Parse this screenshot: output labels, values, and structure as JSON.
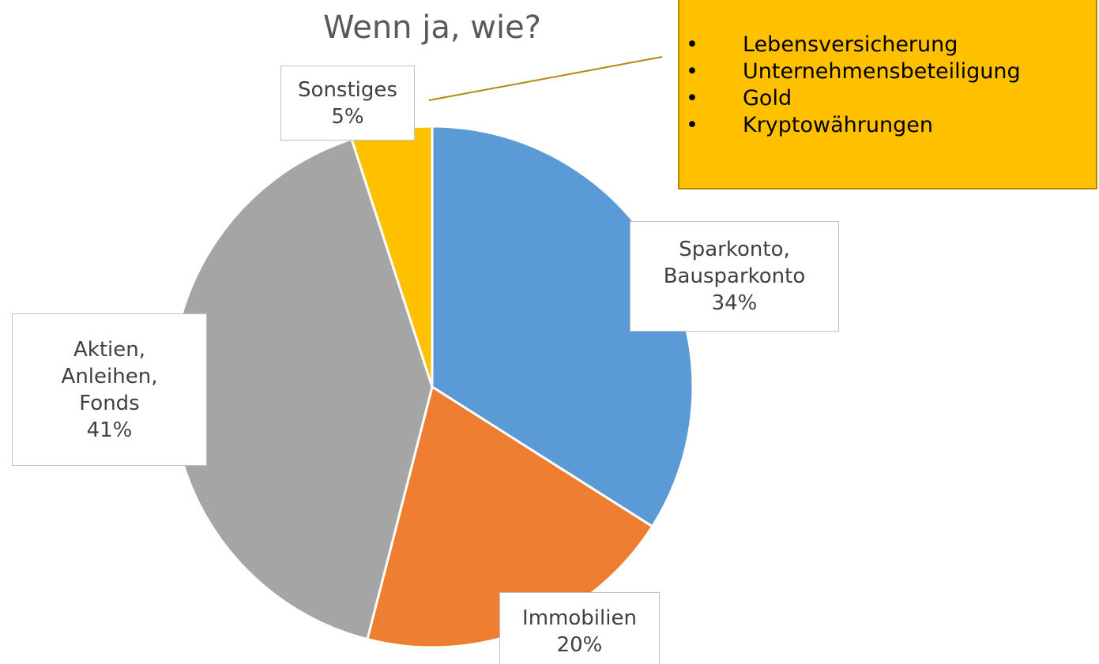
{
  "chart_data": {
    "type": "pie",
    "title": "Wenn ja, wie?",
    "categories": [
      "Sparkonto, Bausparkonto",
      "Immobilien",
      "Aktien, Anleihen, Fonds",
      "Sonstiges"
    ],
    "values": [
      34,
      20,
      41,
      5
    ],
    "value_labels": [
      "34%",
      "20%",
      "41%",
      "5%"
    ],
    "colors": [
      "#5b9bd5",
      "#ed7d31",
      "#a5a5a5",
      "#ffc000"
    ],
    "annotation": {
      "items": [
        "Lebensversicherung",
        "Unternehmensbeteiligung",
        "Gold",
        "Kryptowährungen"
      ]
    }
  }
}
